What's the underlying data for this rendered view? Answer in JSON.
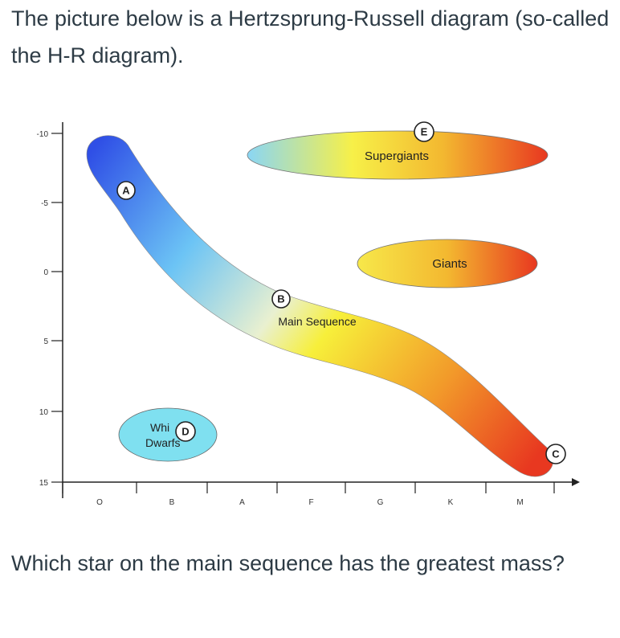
{
  "intro_text": "The picture below is a Hertzsprung-Russell diagram (so-called the H-R diagram).",
  "question_text": "Which star on the main sequence has the greatest mass?",
  "diagram": {
    "y_ticks": [
      "-10",
      "-5",
      "0",
      "5",
      "10",
      "15"
    ],
    "x_ticks": [
      "O",
      "B",
      "A",
      "F",
      "G",
      "K",
      "M"
    ],
    "regions": {
      "supergiants": "Supergiants",
      "giants": "Giants",
      "main_sequence": "Main Sequence",
      "white_dwarfs": [
        "Whi",
        "Dwarfs"
      ]
    },
    "markers": [
      "A",
      "B",
      "C",
      "D",
      "E"
    ],
    "colors": {
      "hot_blue": "#2f55e6",
      "light_blue": "#7fd0f5",
      "yellow": "#f5f03a",
      "orange": "#f09a2a",
      "red": "#e83820",
      "dwarf_fill": "#7fe0f0"
    }
  }
}
